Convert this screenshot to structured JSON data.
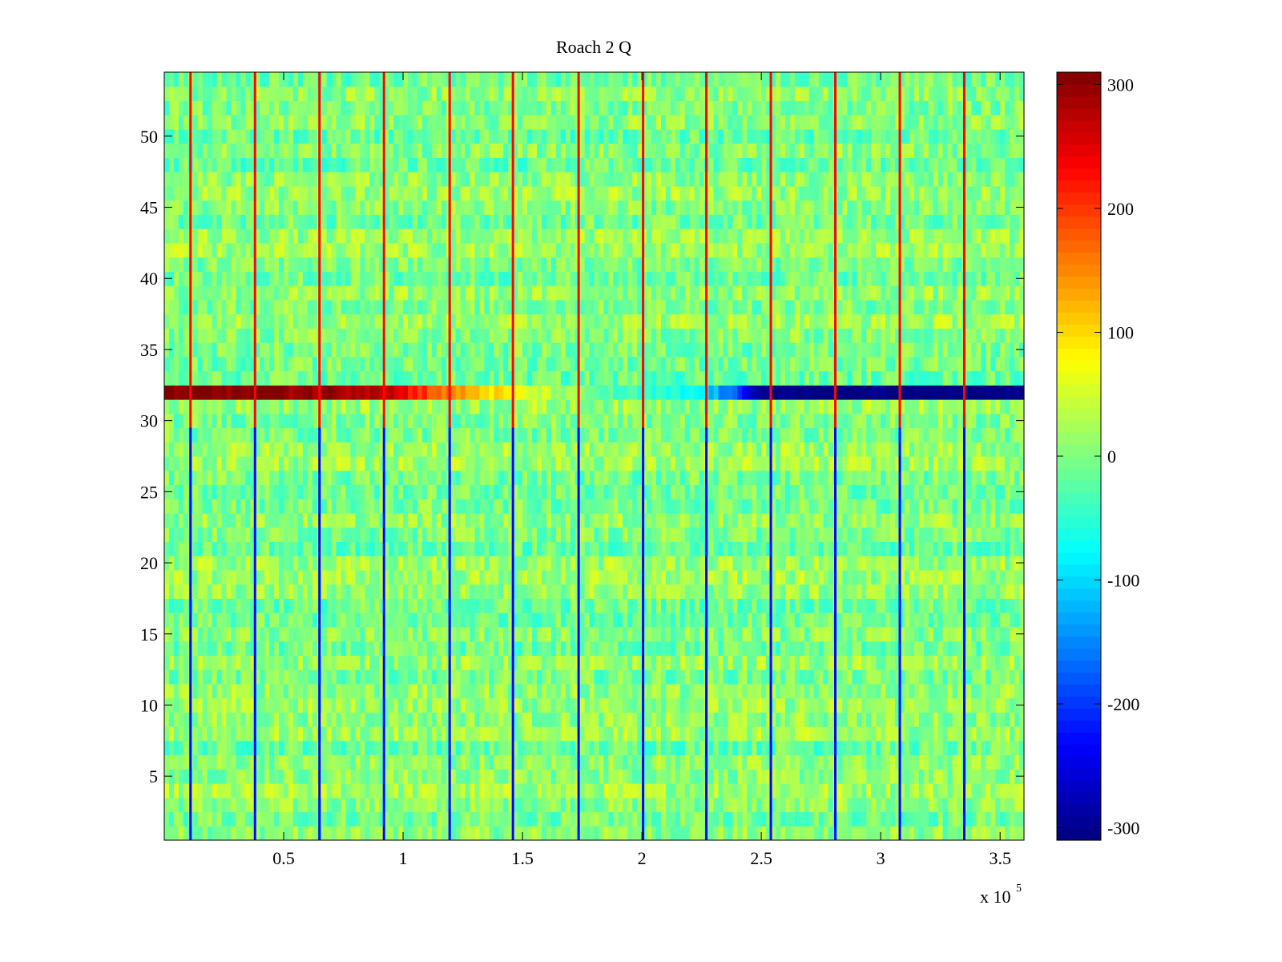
{
  "chart_data": {
    "type": "heatmap",
    "title": "Roach 2 Q",
    "xlabel": "",
    "ylabel": "",
    "xlim": [
      0,
      360000
    ],
    "ylim": [
      0.5,
      54.5
    ],
    "x_multiplier_label": "x 10",
    "x_multiplier_exponent": "5",
    "x_ticks": [
      {
        "value": 50000,
        "label": "0.5"
      },
      {
        "value": 100000,
        "label": "1"
      },
      {
        "value": 150000,
        "label": "1.5"
      },
      {
        "value": 200000,
        "label": "2"
      },
      {
        "value": 250000,
        "label": "2.5"
      },
      {
        "value": 300000,
        "label": "3"
      },
      {
        "value": 350000,
        "label": "3.5"
      }
    ],
    "y_ticks": [
      {
        "value": 5,
        "label": "5"
      },
      {
        "value": 10,
        "label": "10"
      },
      {
        "value": 15,
        "label": "15"
      },
      {
        "value": 20,
        "label": "20"
      },
      {
        "value": 25,
        "label": "25"
      },
      {
        "value": 30,
        "label": "30"
      },
      {
        "value": 35,
        "label": "35"
      },
      {
        "value": 40,
        "label": "40"
      },
      {
        "value": 45,
        "label": "45"
      },
      {
        "value": 50,
        "label": "50"
      }
    ],
    "colorbar": {
      "colormap": "jet",
      "range": [
        -310,
        310
      ],
      "ticks": [
        {
          "value": 300,
          "label": "300"
        },
        {
          "value": 200,
          "label": "200"
        },
        {
          "value": 100,
          "label": "100"
        },
        {
          "value": 0,
          "label": "0"
        },
        {
          "value": -100,
          "label": "-100"
        },
        {
          "value": -200,
          "label": "-200"
        },
        {
          "value": -300,
          "label": "-300"
        }
      ]
    },
    "rows": 54,
    "baseline_value": 0,
    "noise_amplitude": 60,
    "drift_channel": {
      "row": 32,
      "description_points": [
        {
          "x": 0,
          "value": 320
        },
        {
          "x": 90000,
          "value": 290
        },
        {
          "x": 120000,
          "value": 150
        },
        {
          "x": 150000,
          "value": 60
        },
        {
          "x": 190000,
          "value": -40
        },
        {
          "x": 225000,
          "value": -80
        },
        {
          "x": 240000,
          "value": -200
        },
        {
          "x": 255000,
          "value": -320
        },
        {
          "x": 360000,
          "value": -320
        }
      ]
    },
    "spike_columns": [
      11000,
      38000,
      65000,
      92000,
      119500,
      146000,
      173500,
      200500,
      227000,
      254000,
      281000,
      308000,
      335000
    ]
  }
}
